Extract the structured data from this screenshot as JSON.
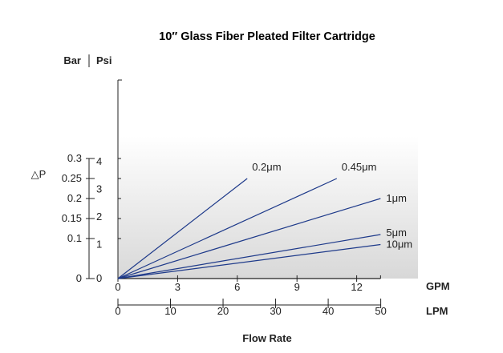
{
  "chart_data": {
    "type": "line",
    "title": "10″ Glass Fiber Pleated Filter Cartridge",
    "xlabel": "Flow Rate",
    "ylabel": "△P",
    "x_units": {
      "primary": "GPM",
      "secondary": "LPM"
    },
    "y_units": {
      "primary": "Bar",
      "secondary": "Psi"
    },
    "x_gpm_ticks": [
      "0",
      "3",
      "6",
      "9",
      "12"
    ],
    "x_lpm_ticks": [
      "0",
      "10",
      "20",
      "30",
      "40",
      "50"
    ],
    "y_bar_ticks": [
      "0",
      "0.1",
      "0.15",
      "0.2",
      "0.25",
      "0.3"
    ],
    "y_psi_ticks": [
      "0",
      "1",
      "2",
      "3",
      "4"
    ],
    "xlim_gpm": [
      0,
      13.2
    ],
    "ylim_bar": [
      0,
      0.3
    ],
    "grid": false,
    "series": [
      {
        "name": "0.2μm",
        "points": [
          [
            0,
            0
          ],
          [
            6.5,
            0.25
          ]
        ]
      },
      {
        "name": "0.45μm",
        "points": [
          [
            0,
            0
          ],
          [
            11.0,
            0.25
          ]
        ]
      },
      {
        "name": "1μm",
        "points": [
          [
            0,
            0
          ],
          [
            13.2,
            0.2
          ]
        ]
      },
      {
        "name": "5μm",
        "points": [
          [
            0,
            0
          ],
          [
            13.2,
            0.11
          ]
        ]
      },
      {
        "name": "10μm",
        "points": [
          [
            0,
            0
          ],
          [
            13.2,
            0.085
          ]
        ]
      }
    ]
  },
  "style": {
    "line_color": "#1e3a8a",
    "axis_color": "#222222"
  }
}
